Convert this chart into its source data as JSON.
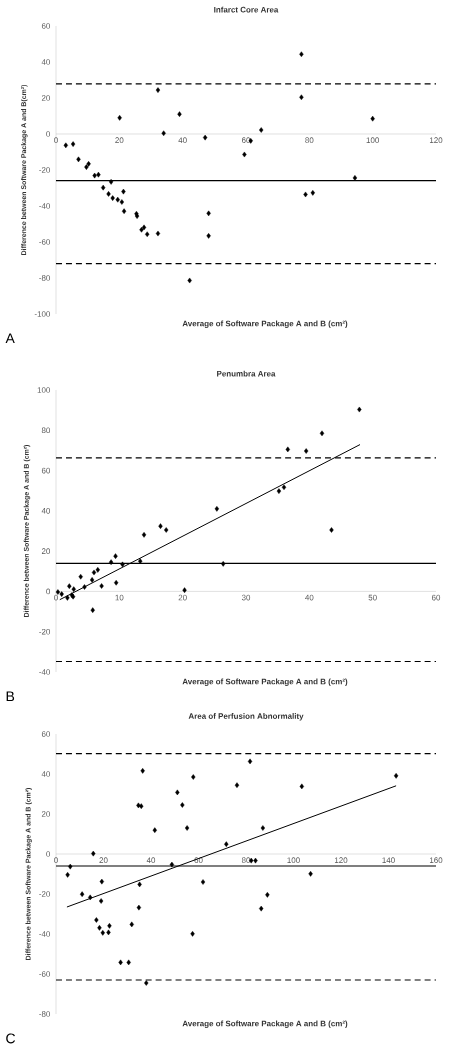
{
  "chart_data": [
    {
      "type": "scatter",
      "title": "Infarct Core Area",
      "xlabel": "Average of  Software Package A and B (cm²)",
      "ylabel": "Difference between Software Package  A and B(cm²)",
      "annotations": [
        "A"
      ],
      "marker": "diamond",
      "xlim": [
        0,
        120
      ],
      "xticks": [
        0,
        20,
        40,
        60,
        80,
        100,
        120
      ],
      "ylim": [
        -100,
        60
      ],
      "yticks": [
        -100,
        -80,
        -60,
        -40,
        -20,
        0,
        20,
        40,
        60
      ],
      "ref_lines": [
        {
          "axis": "y",
          "value": 27.8,
          "color": "#000000",
          "line_style": "dashed"
        },
        {
          "axis": "y",
          "value": -25.9,
          "color": "#000000",
          "line_style": "solid"
        },
        {
          "axis": "y",
          "value": -72.0,
          "color": "#000000",
          "line_style": "dashed"
        }
      ],
      "series": [
        {
          "color": "#000000",
          "x": [
            3.1,
            5.4,
            7.1,
            9.6,
            10.3,
            12.2,
            13.4,
            14.9,
            17.4,
            16.6,
            17.9,
            19.5,
            20.8,
            21.3,
            21.5,
            25.4,
            25.6,
            27.0,
            27.8,
            28.8,
            32.2,
            20.1,
            32.2,
            34.0,
            39.0,
            47.1,
            48.2,
            48.2,
            42.2,
            59.5,
            61.5,
            64.8,
            77.5,
            77.5,
            78.8,
            81.1,
            94.4,
            100
          ],
          "values": [
            -6.3,
            -5.6,
            -14.1,
            -18.4,
            -16.6,
            -23.1,
            -22.6,
            -29.8,
            -26.6,
            -33.3,
            -35.6,
            -36.5,
            -37.8,
            -32.0,
            -42.9,
            -44.3,
            -45.6,
            -53.2,
            -51.9,
            -55.7,
            -55.3,
            9.0,
            24.4,
            0.4,
            11.0,
            -2.0,
            -44.1,
            -56.6,
            -81.4,
            -11.4,
            -3.8,
            2.2,
            44.3,
            20.4,
            -33.6,
            -32.7,
            -24.4,
            8.5
          ]
        }
      ]
    },
    {
      "type": "scatter",
      "title": "Penumbra Area",
      "xlabel": "Average of  Software Package A and B (cm²)",
      "ylabel": "Difference between Software Package A and B (cm²)",
      "annotations": [
        "B"
      ],
      "marker": "diamond",
      "xlim": [
        0,
        60
      ],
      "xticks": [
        0,
        10,
        20,
        30,
        40,
        50,
        60
      ],
      "ylim": [
        -40,
        100
      ],
      "yticks": [
        -40,
        -20,
        0,
        20,
        40,
        60,
        80,
        100
      ],
      "ref_lines": [
        {
          "axis": "y",
          "value": 66.3,
          "color": "#000000",
          "line_style": "dashed"
        },
        {
          "axis": "y",
          "value": 13.9,
          "color": "#000000",
          "line_style": "solid"
        },
        {
          "axis": "y",
          "value": -34.8,
          "color": "#000000",
          "line_style": "dashed"
        }
      ],
      "series": [
        {
          "color": "#000000",
          "x": [
            0.3,
            0.9,
            1.8,
            2.1,
            2.5,
            2.8,
            2.7,
            3.9,
            4.5,
            5.7,
            6.0,
            6.6,
            5.8,
            7.2,
            8.7,
            9.4,
            9.5,
            10.5,
            13.3,
            13.9,
            16.5,
            17.4,
            20.3,
            25.4,
            26.4,
            35.2,
            36.0,
            36.6,
            39.5,
            42.0,
            43.5,
            47.9
          ],
          "values": [
            -0.3,
            -1.3,
            -3.2,
            2.6,
            -1.8,
            1.1,
            -2.6,
            7.3,
            2.2,
            5.7,
            9.4,
            10.7,
            -9.3,
            2.7,
            14.5,
            17.5,
            4.3,
            13.4,
            15.0,
            28.1,
            32.4,
            30.5,
            0.6,
            41.0,
            13.7,
            49.8,
            51.7,
            70.5,
            69.7,
            78.5,
            30.5,
            90.3
          ]
        },
        {
          "type": "line",
          "color": "#000000",
          "marker": "none",
          "x": [
            0.6,
            48.0
          ],
          "values": [
            -4.1,
            72.9
          ]
        }
      ]
    },
    {
      "type": "scatter",
      "title": "Area of Perfusion Abnormality",
      "xlabel": "Average of  Software Package A and B (cm²)",
      "ylabel": "Difference between Software Package A and B (cm²)",
      "annotations": [
        "C"
      ],
      "marker": "diamond",
      "xlim": [
        0,
        160
      ],
      "xticks": [
        0,
        20,
        40,
        60,
        80,
        100,
        120,
        140,
        160
      ],
      "ylim": [
        -80,
        60
      ],
      "yticks": [
        -80,
        -60,
        -40,
        -20,
        0,
        20,
        40,
        60
      ],
      "ref_lines": [
        {
          "axis": "y",
          "value": 50.2,
          "color": "#000000",
          "line_style": "dashed"
        },
        {
          "axis": "y",
          "value": -6.0,
          "color": "#000000",
          "line_style": "solid"
        },
        {
          "axis": "y",
          "value": -63.0,
          "color": "#000000",
          "line_style": "dashed"
        }
      ],
      "series": [
        {
          "color": "#000000",
          "x": [
            4.9,
            6.0,
            11.0,
            14.4,
            15.7,
            17.0,
            18.3,
            19.3,
            19.0,
            19.7,
            22.1,
            22.5,
            27.2,
            30.6,
            31.9,
            34.7,
            35.9,
            35.2,
            34.9,
            36.5,
            38.0,
            41.6,
            48.8,
            51.1,
            53.2,
            55.2,
            57.8,
            57.5,
            61.9,
            71.7,
            76.2,
            81.7,
            82.2,
            84.0,
            87.1,
            86.4,
            89.0,
            103.5,
            107.2,
            143.2
          ],
          "values": [
            -10.4,
            -6.3,
            -20.1,
            -21.7,
            0.2,
            -33.0,
            -36.9,
            -13.8,
            -23.5,
            -39.4,
            -39.2,
            -35.9,
            -54.2,
            -54.2,
            -35.2,
            24.3,
            23.9,
            -15.2,
            -26.8,
            41.6,
            -64.5,
            11.9,
            -5.3,
            30.8,
            24.5,
            13.0,
            38.5,
            -39.9,
            -14.0,
            4.9,
            34.4,
            46.3,
            -3.3,
            -3.3,
            13.0,
            -27.3,
            -20.4,
            33.8,
            -9.9,
            39.1
          ]
        },
        {
          "type": "line",
          "color": "#000000",
          "marker": "none",
          "x": [
            4.6,
            143.2
          ],
          "values": [
            -26.5,
            34.1
          ]
        }
      ]
    }
  ]
}
